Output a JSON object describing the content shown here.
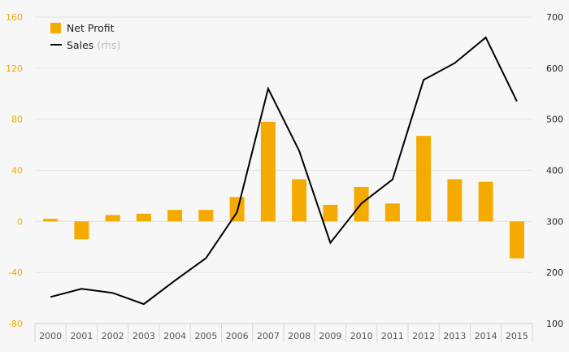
{
  "chart_data": {
    "type": "bar",
    "categories": [
      "2000",
      "2001",
      "2002",
      "2003",
      "2004",
      "2005",
      "2006",
      "2007",
      "2008",
      "2009",
      "2010",
      "2011",
      "2012",
      "2013",
      "2014",
      "2015"
    ],
    "series": [
      {
        "name": "Net Profit",
        "type": "bar",
        "axis": "left",
        "color": "#f5aa00",
        "values": [
          2,
          -14,
          5,
          6,
          9,
          9,
          19,
          78,
          33,
          13,
          27,
          14,
          67,
          33,
          31,
          -29
        ]
      },
      {
        "name": "Sales",
        "type": "line",
        "axis": "right",
        "color": "#000000",
        "values": [
          152,
          168,
          160,
          138,
          184,
          228,
          318,
          560,
          438,
          258,
          335,
          382,
          577,
          610,
          660,
          535
        ]
      }
    ],
    "y_left": {
      "ylim": [
        -80,
        160
      ],
      "ticks": [
        "-80",
        "-40",
        "0",
        "40",
        "80",
        "120",
        "160"
      ],
      "color": "#f0aa00"
    },
    "y_right": {
      "ylim": [
        100,
        700
      ],
      "ticks": [
        "100",
        "200",
        "300",
        "400",
        "500",
        "600",
        "700"
      ]
    },
    "legend": {
      "position": "top-left",
      "items": [
        {
          "label": "Net Profit",
          "sub": ""
        },
        {
          "label": "Sales",
          "sub": "(rhs)"
        }
      ]
    },
    "grid": true
  }
}
